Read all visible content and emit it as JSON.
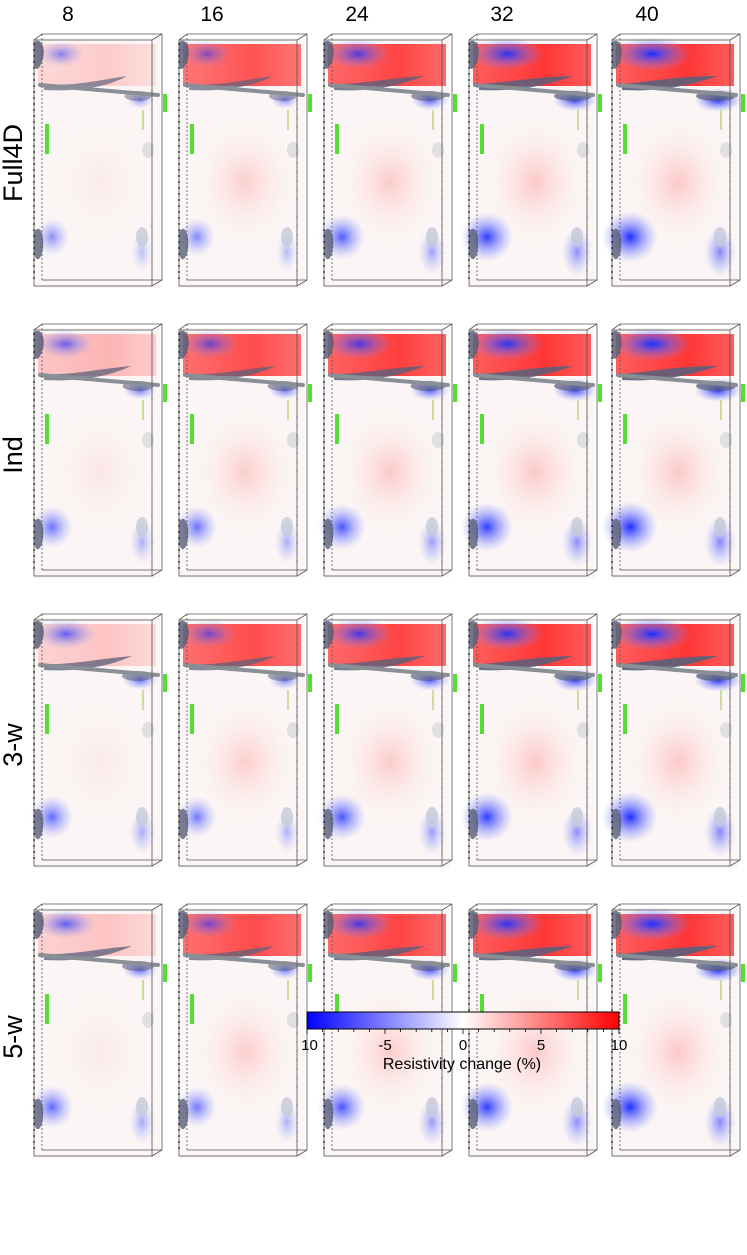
{
  "columns": [
    "8",
    "16",
    "24",
    "32",
    "40"
  ],
  "rows": [
    "Full4D",
    "Ind",
    "3-w",
    "5-w"
  ],
  "panels": [
    {
      "row": "Full4D",
      "column": "8",
      "red_level": 0.0,
      "blue_level": 0.35
    },
    {
      "row": "Full4D",
      "column": "16",
      "red_level": 0.8,
      "blue_level": 0.4
    },
    {
      "row": "Full4D",
      "column": "24",
      "red_level": 0.9,
      "blue_level": 0.7
    },
    {
      "row": "Full4D",
      "column": "32",
      "red_level": 1.0,
      "blue_level": 0.9
    },
    {
      "row": "Full4D",
      "column": "40",
      "red_level": 1.0,
      "blue_level": 1.0
    },
    {
      "row": "Ind",
      "column": "8",
      "red_level": 0.15,
      "blue_level": 0.55
    },
    {
      "row": "Ind",
      "column": "16",
      "red_level": 0.85,
      "blue_level": 0.55
    },
    {
      "row": "Ind",
      "column": "24",
      "red_level": 0.95,
      "blue_level": 0.75
    },
    {
      "row": "Ind",
      "column": "32",
      "red_level": 1.0,
      "blue_level": 0.9
    },
    {
      "row": "Ind",
      "column": "40",
      "red_level": 1.0,
      "blue_level": 1.0
    },
    {
      "row": "3-w",
      "column": "8",
      "red_level": 0.05,
      "blue_level": 0.6
    },
    {
      "row": "3-w",
      "column": "16",
      "red_level": 0.85,
      "blue_level": 0.5
    },
    {
      "row": "3-w",
      "column": "24",
      "red_level": 0.9,
      "blue_level": 0.75
    },
    {
      "row": "3-w",
      "column": "32",
      "red_level": 1.0,
      "blue_level": 0.9
    },
    {
      "row": "3-w",
      "column": "40",
      "red_level": 1.0,
      "blue_level": 1.0
    },
    {
      "row": "5-w",
      "column": "8",
      "red_level": 0.05,
      "blue_level": 0.6
    },
    {
      "row": "5-w",
      "column": "16",
      "red_level": 0.85,
      "blue_level": 0.5
    },
    {
      "row": "5-w",
      "column": "24",
      "red_level": 0.9,
      "blue_level": 0.75
    },
    {
      "row": "5-w",
      "column": "32",
      "red_level": 1.0,
      "blue_level": 0.9
    },
    {
      "row": "5-w",
      "column": "40",
      "red_level": 1.0,
      "blue_level": 1.0
    }
  ],
  "colorbar": {
    "title": "Resistivity change (%)",
    "min": -10,
    "max": 10,
    "ticks": [
      "-10",
      "-5",
      "0",
      "5",
      "10"
    ],
    "colors": {
      "negative": "#0000ff",
      "zero": "#ffffff",
      "positive": "#ff0000"
    }
  },
  "colors": {
    "electrode": "#55dd33",
    "isosurface": "#5a607a",
    "frame": "#555555",
    "borehole": "#8a8f95"
  }
}
